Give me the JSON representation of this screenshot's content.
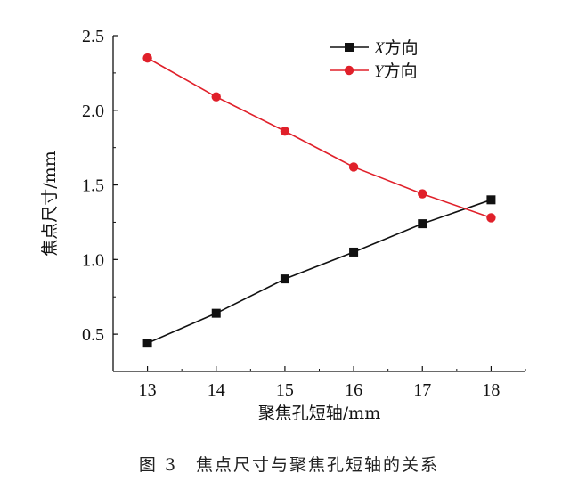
{
  "chart_data": {
    "type": "line",
    "title": "",
    "xlabel": "聚焦孔短轴/mm",
    "ylabel": "焦点尺寸/mm",
    "x": [
      13,
      14,
      15,
      16,
      17,
      18
    ],
    "xlim": [
      12.5,
      18.5
    ],
    "ylim": [
      0.25,
      2.5
    ],
    "x_ticks": [
      "13",
      "14",
      "15",
      "16",
      "17",
      "18"
    ],
    "y_ticks": [
      "0.5",
      "1.0",
      "1.5",
      "2.0",
      "2.5"
    ],
    "legend_position": "top-right",
    "series": [
      {
        "name": "X方向",
        "var": "X",
        "suffix": "方向",
        "marker": "square",
        "color": "#111111",
        "values": [
          0.44,
          0.64,
          0.87,
          1.05,
          1.24,
          1.4
        ]
      },
      {
        "name": "Y方向",
        "var": "Y",
        "suffix": "方向",
        "marker": "circle",
        "color": "#e0202a",
        "values": [
          2.35,
          2.09,
          1.86,
          1.62,
          1.44,
          1.28
        ]
      }
    ]
  },
  "caption": "图 3　焦点尺寸与聚焦孔短轴的关系"
}
